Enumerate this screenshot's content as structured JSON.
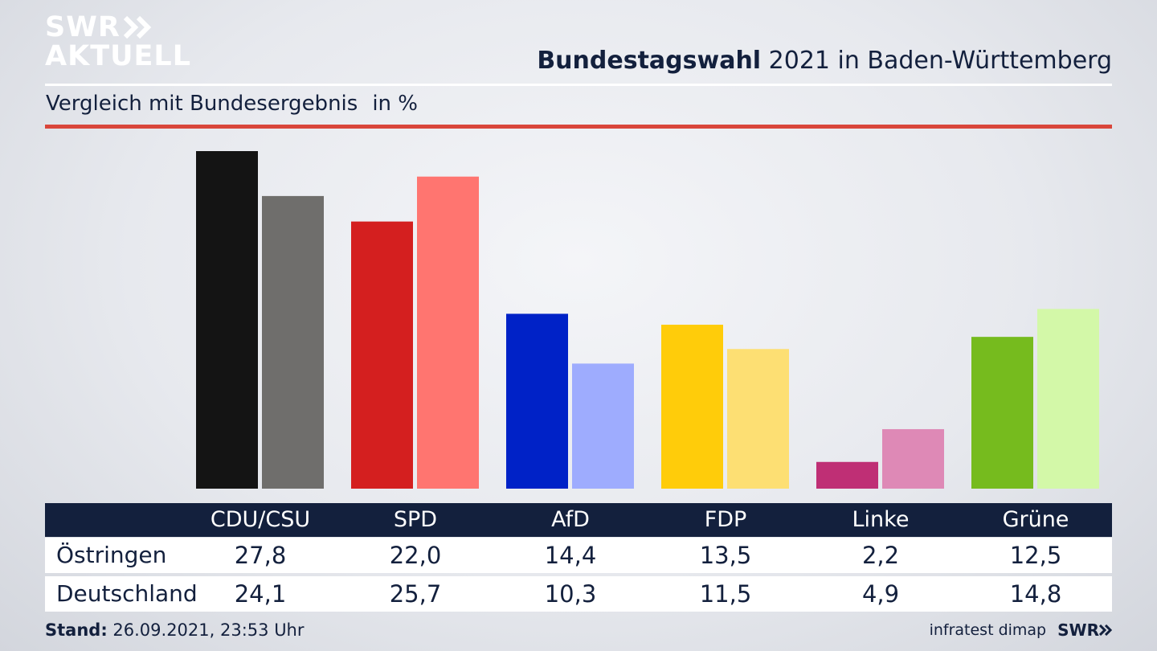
{
  "logo": {
    "line1": "SWR",
    "line2": "AKTUELL"
  },
  "header": {
    "title_bold": "Bundestagswahl",
    "title_rest": "2021 in Baden-Württemberg",
    "subtitle": "Vergleich mit Bundesergebnis",
    "unit": "in %"
  },
  "chart_data": {
    "type": "bar",
    "categories": [
      "CDU/CSU",
      "SPD",
      "AfD",
      "FDP",
      "Linke",
      "Grüne"
    ],
    "series": [
      {
        "name": "Östringen",
        "values": [
          27.8,
          22.0,
          14.4,
          13.5,
          2.2,
          12.5
        ]
      },
      {
        "name": "Deutschland",
        "values": [
          24.1,
          25.7,
          10.3,
          11.5,
          4.9,
          14.8
        ]
      }
    ],
    "value_labels": {
      "Östringen": [
        "27,8",
        "22,0",
        "14,4",
        "13,5",
        "2,2",
        "12,5"
      ],
      "Deutschland": [
        "24,1",
        "25,7",
        "10,3",
        "11,5",
        "4,9",
        "14,8"
      ]
    },
    "colors": {
      "Östringen": [
        "#141414",
        "#d41f1f",
        "#0022c7",
        "#ffcc0a",
        "#bf2f75",
        "#76bb1e"
      ],
      "Deutschland": [
        "#6f6e6c",
        "#ff7570",
        "#9eacfe",
        "#fddf73",
        "#de89b6",
        "#d3f8a8"
      ]
    },
    "ylim": [
      0,
      27.8
    ],
    "grid": false,
    "legend": "table-below"
  },
  "footer": {
    "stand_label": "Stand:",
    "stand_value": "26.09.2021, 23:53 Uhr",
    "source": "infratest dimap",
    "brand": "SWR"
  }
}
